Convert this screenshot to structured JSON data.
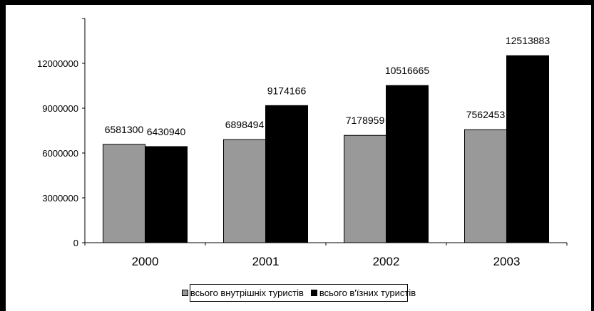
{
  "chart_data": {
    "type": "bar",
    "categories": [
      "2000",
      "2001",
      "2002",
      "2003"
    ],
    "series": [
      {
        "name": "всього внутрішніх туристів",
        "values": [
          6581300,
          6898494,
          7178959,
          7562453
        ],
        "color": "#999999"
      },
      {
        "name": "всього в'їзних туристів",
        "values": [
          6430940,
          9174166,
          10516665,
          12513883
        ],
        "color": "#000000"
      }
    ],
    "yticks": [
      "0",
      "3000000",
      "6000000",
      "9000000",
      "12000000"
    ],
    "ylim": [
      0,
      15000000
    ],
    "data_labels": true,
    "grid": false,
    "legend_position": "bottom",
    "border_color": "#000000"
  }
}
